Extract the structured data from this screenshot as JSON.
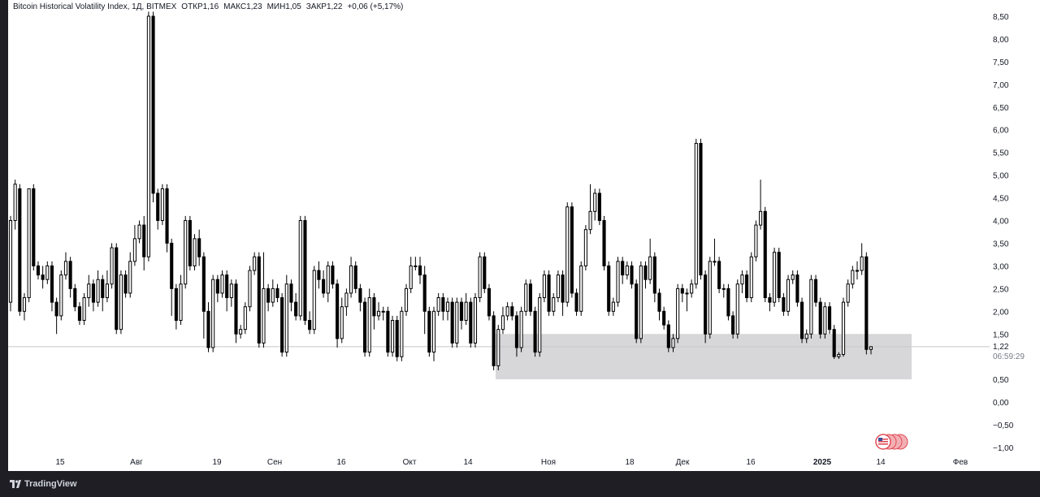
{
  "legend": {
    "title": "Bitcoin Historical Volatility Index, 1Д, BITMEX",
    "open": "ОТКР1,16",
    "high": "МАКС1,23",
    "low": "МИН1,05",
    "close": "ЗАКР1,22",
    "change": "+0,06 (+5,17%)"
  },
  "footer": {
    "brand": "TradingView"
  },
  "price_label": {
    "value": "1,22",
    "countdown": "06:59:29"
  },
  "colors": {
    "up_body": "#ffffff",
    "down_body": "#000000",
    "wick": "#000000",
    "zone": "#d7d7da",
    "background": "#ffffff"
  },
  "chart_data": {
    "type": "candlestick",
    "title": "Bitcoin Historical Volatility Index, 1Д, BITMEX",
    "ylim": [
      -1.0,
      8.5
    ],
    "y_ticks": [
      "8,50",
      "8,00",
      "7,50",
      "7,00",
      "6,50",
      "6,00",
      "5,50",
      "5,00",
      "4,50",
      "4,00",
      "3,50",
      "3,00",
      "2,50",
      "2,00",
      "1,50",
      "1,22",
      "0,50",
      "0,00",
      "−0,50",
      "−1,00"
    ],
    "x_ticks": [
      "15",
      "Авг",
      "19",
      "Сен",
      "16",
      "Окт",
      "14",
      "Ноя",
      "18",
      "Дек",
      "16",
      "2025",
      "14",
      "Фев"
    ],
    "zone": {
      "y_from": 0.5,
      "y_to": 1.5
    },
    "last_price": 1.22,
    "candles": [
      [
        2.2,
        4.0,
        4.1,
        2.0
      ],
      [
        4.0,
        4.8,
        4.9,
        3.8
      ],
      [
        4.7,
        2.0,
        4.8,
        1.9
      ],
      [
        2.0,
        2.3,
        2.4,
        1.8
      ],
      [
        2.3,
        4.7,
        4.7,
        2.2
      ],
      [
        4.7,
        3.0,
        4.8,
        2.9
      ],
      [
        3.0,
        2.8,
        3.1,
        2.7
      ],
      [
        2.8,
        2.7,
        3.0,
        2.5
      ],
      [
        2.7,
        3.0,
        3.1,
        2.6
      ],
      [
        3.0,
        2.2,
        3.1,
        2.0
      ],
      [
        2.2,
        1.9,
        2.3,
        1.5
      ],
      [
        1.9,
        2.8,
        2.9,
        1.8
      ],
      [
        2.8,
        3.1,
        3.3,
        2.7
      ],
      [
        3.1,
        2.5,
        3.2,
        2.3
      ],
      [
        2.5,
        2.1,
        2.6,
        2.0
      ],
      [
        2.1,
        1.8,
        2.2,
        1.7
      ],
      [
        1.8,
        2.3,
        2.4,
        1.7
      ],
      [
        2.3,
        2.6,
        2.8,
        2.1
      ],
      [
        2.6,
        2.2,
        2.7,
        2.0
      ],
      [
        2.2,
        2.7,
        2.9,
        2.1
      ],
      [
        2.7,
        2.3,
        2.8,
        2.0
      ],
      [
        2.3,
        2.6,
        2.9,
        2.2
      ],
      [
        2.6,
        3.4,
        3.5,
        2.5
      ],
      [
        3.4,
        1.6,
        3.5,
        1.5
      ],
      [
        1.6,
        2.8,
        2.9,
        1.5
      ],
      [
        2.8,
        2.4,
        2.9,
        2.3
      ],
      [
        2.4,
        3.1,
        3.3,
        2.3
      ],
      [
        3.1,
        3.6,
        3.9,
        3.0
      ],
      [
        3.6,
        3.9,
        4.0,
        3.5
      ],
      [
        3.9,
        3.2,
        4.1,
        2.9
      ],
      [
        3.2,
        8.5,
        8.6,
        3.1
      ],
      [
        8.5,
        4.6,
        8.6,
        4.4
      ],
      [
        4.6,
        4.0,
        4.7,
        3.8
      ],
      [
        4.0,
        4.7,
        4.8,
        3.9
      ],
      [
        4.7,
        3.5,
        4.8,
        3.3
      ],
      [
        3.5,
        2.5,
        3.6,
        1.9
      ],
      [
        2.5,
        1.8,
        2.6,
        1.6
      ],
      [
        1.8,
        2.6,
        2.8,
        1.7
      ],
      [
        2.6,
        4.0,
        4.1,
        2.5
      ],
      [
        4.0,
        3.0,
        4.1,
        2.9
      ],
      [
        3.0,
        3.6,
        3.7,
        2.9
      ],
      [
        3.6,
        3.2,
        3.8,
        3.0
      ],
      [
        3.2,
        2.0,
        3.3,
        1.4
      ],
      [
        2.0,
        1.2,
        2.2,
        1.1
      ],
      [
        1.2,
        2.7,
        2.8,
        1.1
      ],
      [
        2.7,
        2.4,
        2.8,
        2.2
      ],
      [
        2.4,
        2.8,
        2.9,
        2.3
      ],
      [
        2.8,
        2.3,
        2.9,
        2.0
      ],
      [
        2.3,
        2.6,
        2.7,
        2.1
      ],
      [
        2.6,
        1.5,
        2.7,
        1.3
      ],
      [
        1.5,
        1.6,
        1.7,
        1.4
      ],
      [
        1.6,
        2.1,
        2.2,
        1.5
      ],
      [
        2.1,
        2.9,
        3.0,
        2.0
      ],
      [
        2.9,
        3.2,
        3.3,
        2.8
      ],
      [
        3.2,
        1.3,
        3.3,
        1.2
      ],
      [
        1.3,
        2.5,
        3.3,
        1.2
      ],
      [
        2.5,
        2.2,
        2.6,
        2.0
      ],
      [
        2.2,
        2.5,
        2.7,
        2.1
      ],
      [
        2.5,
        2.3,
        2.6,
        2.2
      ],
      [
        2.3,
        1.1,
        2.4,
        1.0
      ],
      [
        1.1,
        2.6,
        2.8,
        1.0
      ],
      [
        2.6,
        2.2,
        2.7,
        2.0
      ],
      [
        2.2,
        1.9,
        2.4,
        1.8
      ],
      [
        1.9,
        4.0,
        4.1,
        1.8
      ],
      [
        4.0,
        1.8,
        4.1,
        1.7
      ],
      [
        1.8,
        1.6,
        2.0,
        1.5
      ],
      [
        1.6,
        2.9,
        3.0,
        1.5
      ],
      [
        2.9,
        2.7,
        3.1,
        2.5
      ],
      [
        2.7,
        2.4,
        2.9,
        2.3
      ],
      [
        2.4,
        3.0,
        3.1,
        2.2
      ],
      [
        3.0,
        2.6,
        3.1,
        2.5
      ],
      [
        2.6,
        1.4,
        2.7,
        1.2
      ],
      [
        1.4,
        2.1,
        2.3,
        1.3
      ],
      [
        2.1,
        2.4,
        2.5,
        1.9
      ],
      [
        2.4,
        3.0,
        3.2,
        2.3
      ],
      [
        3.0,
        2.5,
        3.1,
        2.4
      ],
      [
        2.5,
        2.2,
        2.6,
        2.0
      ],
      [
        2.2,
        1.1,
        2.3,
        1.0
      ],
      [
        1.1,
        2.3,
        2.5,
        1.0
      ],
      [
        2.3,
        1.9,
        2.4,
        1.6
      ],
      [
        1.9,
        2.0,
        2.2,
        1.8
      ],
      [
        2.0,
        2.0,
        2.1,
        1.8
      ],
      [
        2.0,
        1.1,
        2.1,
        1.0
      ],
      [
        1.1,
        1.8,
        1.9,
        1.0
      ],
      [
        1.8,
        1.0,
        1.9,
        0.9
      ],
      [
        1.0,
        2.0,
        2.1,
        0.9
      ],
      [
        2.0,
        2.5,
        2.6,
        1.9
      ],
      [
        2.5,
        3.0,
        3.2,
        2.4
      ],
      [
        3.0,
        3.0,
        3.2,
        2.9
      ],
      [
        3.0,
        2.8,
        3.2,
        2.6
      ],
      [
        2.8,
        2.0,
        3.0,
        1.5
      ],
      [
        2.0,
        1.1,
        2.1,
        1.0
      ],
      [
        1.1,
        2.0,
        2.1,
        0.9
      ],
      [
        2.0,
        2.3,
        2.4,
        1.9
      ],
      [
        2.3,
        2.0,
        2.4,
        1.8
      ],
      [
        2.0,
        2.2,
        2.3,
        1.8
      ],
      [
        2.2,
        1.3,
        2.3,
        1.2
      ],
      [
        1.3,
        2.2,
        2.3,
        1.2
      ],
      [
        2.2,
        1.8,
        2.3,
        1.6
      ],
      [
        1.8,
        2.2,
        2.4,
        1.7
      ],
      [
        2.2,
        1.3,
        2.3,
        1.2
      ],
      [
        1.3,
        2.3,
        2.4,
        1.2
      ],
      [
        2.3,
        3.2,
        3.3,
        2.2
      ],
      [
        3.2,
        2.5,
        3.3,
        2.4
      ],
      [
        2.5,
        1.9,
        2.6,
        1.8
      ],
      [
        1.9,
        0.8,
        2.0,
        0.7
      ],
      [
        0.8,
        1.6,
        1.7,
        0.7
      ],
      [
        1.6,
        1.9,
        2.1,
        1.5
      ],
      [
        1.9,
        2.1,
        2.2,
        1.8
      ],
      [
        2.1,
        1.9,
        2.2,
        1.8
      ],
      [
        1.9,
        1.2,
        2.0,
        1.0
      ],
      [
        1.2,
        2.0,
        2.1,
        1.1
      ],
      [
        2.0,
        2.6,
        2.7,
        1.9
      ],
      [
        2.6,
        2.0,
        2.7,
        1.9
      ],
      [
        2.0,
        1.1,
        2.1,
        1.0
      ],
      [
        1.1,
        2.3,
        2.4,
        1.0
      ],
      [
        2.3,
        2.8,
        2.9,
        2.2
      ],
      [
        2.8,
        2.0,
        2.9,
        1.9
      ],
      [
        2.0,
        2.3,
        2.4,
        1.9
      ],
      [
        2.3,
        2.8,
        2.9,
        2.2
      ],
      [
        2.8,
        2.2,
        2.9,
        1.9
      ],
      [
        2.2,
        4.3,
        4.4,
        2.1
      ],
      [
        4.3,
        2.4,
        4.4,
        2.3
      ],
      [
        2.4,
        2.0,
        2.5,
        1.9
      ],
      [
        2.0,
        3.0,
        3.1,
        1.9
      ],
      [
        3.0,
        3.8,
        3.9,
        2.9
      ],
      [
        3.8,
        4.2,
        4.8,
        3.7
      ],
      [
        4.2,
        4.6,
        4.7,
        4.0
      ],
      [
        4.6,
        4.0,
        4.7,
        3.9
      ],
      [
        4.0,
        3.0,
        4.1,
        2.9
      ],
      [
        3.0,
        2.0,
        3.1,
        1.9
      ],
      [
        2.0,
        2.2,
        2.3,
        1.9
      ],
      [
        2.2,
        3.1,
        3.2,
        2.1
      ],
      [
        3.1,
        2.8,
        3.2,
        2.6
      ],
      [
        2.8,
        3.0,
        3.1,
        2.7
      ],
      [
        3.0,
        2.6,
        3.1,
        2.5
      ],
      [
        2.6,
        1.4,
        2.7,
        1.3
      ],
      [
        1.4,
        3.0,
        3.1,
        1.3
      ],
      [
        3.0,
        2.7,
        3.1,
        2.5
      ],
      [
        2.7,
        3.2,
        3.6,
        2.6
      ],
      [
        3.2,
        2.4,
        3.3,
        2.2
      ],
      [
        2.4,
        2.0,
        2.5,
        1.8
      ],
      [
        2.0,
        1.7,
        2.1,
        1.6
      ],
      [
        1.7,
        1.2,
        1.8,
        1.1
      ],
      [
        1.2,
        1.4,
        1.5,
        1.1
      ],
      [
        1.4,
        2.5,
        2.6,
        1.3
      ],
      [
        2.5,
        2.4,
        2.6,
        2.2
      ],
      [
        2.4,
        2.4,
        2.5,
        2.0
      ],
      [
        2.4,
        2.6,
        2.7,
        2.3
      ],
      [
        2.6,
        5.7,
        5.8,
        2.5
      ],
      [
        5.7,
        2.8,
        5.8,
        2.7
      ],
      [
        2.8,
        1.5,
        2.9,
        1.3
      ],
      [
        1.5,
        3.1,
        3.2,
        1.4
      ],
      [
        3.1,
        3.1,
        3.6,
        3.0
      ],
      [
        3.1,
        2.5,
        3.2,
        2.4
      ],
      [
        2.5,
        2.5,
        2.6,
        2.3
      ],
      [
        2.5,
        1.9,
        2.6,
        1.8
      ],
      [
        1.9,
        1.5,
        2.0,
        1.4
      ],
      [
        1.5,
        2.6,
        2.7,
        1.4
      ],
      [
        2.6,
        2.8,
        2.9,
        2.4
      ],
      [
        2.8,
        2.3,
        2.9,
        2.2
      ],
      [
        2.3,
        3.2,
        3.3,
        2.2
      ],
      [
        3.2,
        3.9,
        4.0,
        3.1
      ],
      [
        3.9,
        4.2,
        4.9,
        3.8
      ],
      [
        4.2,
        2.3,
        4.3,
        2.2
      ],
      [
        2.3,
        2.2,
        2.4,
        2.0
      ],
      [
        2.2,
        3.3,
        3.4,
        2.1
      ],
      [
        3.3,
        2.3,
        3.4,
        2.2
      ],
      [
        2.3,
        2.0,
        2.4,
        1.9
      ],
      [
        2.0,
        2.7,
        2.8,
        1.9
      ],
      [
        2.7,
        2.8,
        2.9,
        2.6
      ],
      [
        2.8,
        2.2,
        2.9,
        2.1
      ],
      [
        2.2,
        1.4,
        2.3,
        1.3
      ],
      [
        1.4,
        1.5,
        1.6,
        1.3
      ],
      [
        1.5,
        2.7,
        2.8,
        1.4
      ],
      [
        2.7,
        2.2,
        2.8,
        2.1
      ],
      [
        2.2,
        1.5,
        2.3,
        1.4
      ],
      [
        1.5,
        2.1,
        2.2,
        1.4
      ],
      [
        2.1,
        1.6,
        2.2,
        1.5
      ],
      [
        1.6,
        1.0,
        1.7,
        0.95
      ],
      [
        1.0,
        1.05,
        1.1,
        0.95
      ],
      [
        1.05,
        2.2,
        2.3,
        1.0
      ],
      [
        2.2,
        2.6,
        2.7,
        2.1
      ],
      [
        2.6,
        2.9,
        3.0,
        2.5
      ],
      [
        2.9,
        2.9,
        3.1,
        2.7
      ],
      [
        2.9,
        3.2,
        3.5,
        2.8
      ],
      [
        3.2,
        1.16,
        3.3,
        1.05
      ],
      [
        1.16,
        1.22,
        1.23,
        1.05
      ]
    ]
  }
}
